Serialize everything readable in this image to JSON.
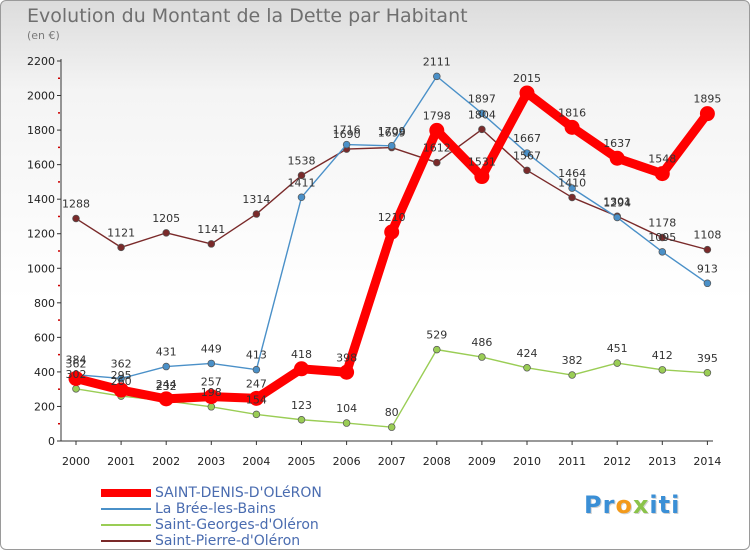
{
  "chart_data": {
    "type": "line",
    "title": "Evolution du Montant de la Dette par Habitant",
    "unit_label": "(en €)",
    "x": [
      "2000",
      "2001",
      "2002",
      "2003",
      "2004",
      "2005",
      "2006",
      "2007",
      "2008",
      "2009",
      "2010",
      "2011",
      "2012",
      "2013",
      "2014"
    ],
    "yticks": [
      "0",
      "200",
      "400",
      "600",
      "800",
      "1000",
      "1200",
      "1400",
      "1600",
      "1800",
      "2000",
      "2200"
    ],
    "ylim": [
      0,
      2200
    ],
    "grid": false,
    "legend_position": "bottom-left",
    "series": [
      {
        "name": "SAINT-DENIS-D'OLéRON",
        "color": "#ff0000",
        "values": [
          362,
          295,
          244,
          257,
          247,
          418,
          398,
          1210,
          1798,
          1531,
          2015,
          1816,
          1637,
          1548,
          1895
        ],
        "labels": [
          "362",
          "295",
          "244",
          "257",
          "247",
          "418",
          "398",
          "1210",
          "1798",
          "1531",
          "2015",
          "1816",
          "1637",
          "1548",
          "1895"
        ]
      },
      {
        "name": "La Brée-les-Bains",
        "color": "#4a90c8",
        "values": [
          384,
          362,
          431,
          449,
          413,
          1411,
          1716,
          1709,
          2111,
          1897,
          1667,
          1464,
          1294,
          1095,
          913
        ],
        "labels": [
          "384",
          "362",
          "431",
          "449",
          "413",
          "1411",
          "1716",
          "1709",
          "2111",
          "1897",
          "1667",
          "1464",
          "1294",
          "1095",
          "913"
        ]
      },
      {
        "name": "Saint-Georges-d'Oléron",
        "color": "#9acd55",
        "values": [
          302,
          260,
          232,
          198,
          154,
          123,
          104,
          80,
          529,
          486,
          424,
          382,
          451,
          412,
          395
        ],
        "labels": [
          "302",
          "260",
          "232",
          "198",
          "154",
          "123",
          "104",
          "80",
          "529",
          "486",
          "424",
          "382",
          "451",
          "412",
          "395"
        ]
      },
      {
        "name": "Saint-Pierre-d'Oléron",
        "color": "#7a2a2a",
        "values": [
          1288,
          1121,
          1205,
          1141,
          1314,
          1538,
          1690,
          1699,
          1612,
          1804,
          1567,
          1410,
          1301,
          1178,
          1108
        ],
        "labels": [
          "1288",
          "1121",
          "1205",
          "1141",
          "1314",
          "1538",
          "1690",
          "1699",
          "1612",
          "1804",
          "1567",
          "1410",
          "1301",
          "1178",
          "1108"
        ]
      }
    ]
  },
  "logo": {
    "part1": "Pr",
    "part2": "o",
    "part3": "x",
    "part4": "iti"
  }
}
